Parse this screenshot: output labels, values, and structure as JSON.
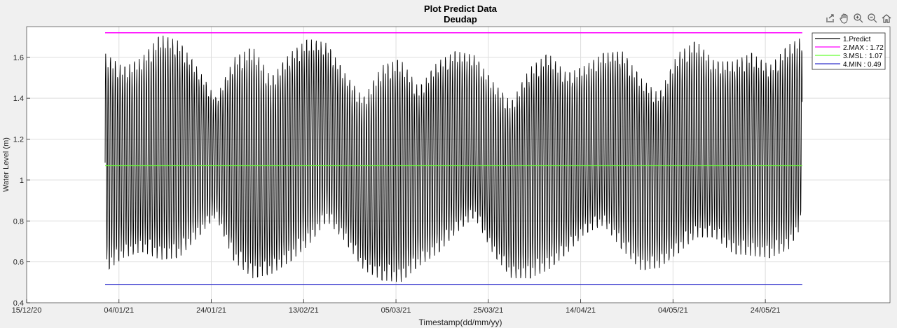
{
  "toolbar": {
    "icons": [
      "export-icon",
      "pan-hand-icon",
      "zoom-in-icon",
      "zoom-out-icon",
      "home-icon"
    ]
  },
  "chart_data": {
    "type": "line",
    "title": "Plot Predict Data",
    "subtitle": "Deudap",
    "xlabel": "Timestamp(dd/mm/yy)",
    "ylabel": "Water Level (m)",
    "x_axis": {
      "type": "date",
      "range": [
        "2020-12-15",
        "2021-06-20"
      ],
      "tick_dates": [
        "2020-12-15",
        "2021-01-04",
        "2021-01-24",
        "2021-02-13",
        "2021-03-05",
        "2021-03-25",
        "2021-04-14",
        "2021-05-04",
        "2021-05-24"
      ],
      "tick_labels": [
        "15/12/20",
        "04/01/21",
        "24/01/21",
        "13/02/21",
        "05/03/21",
        "25/03/21",
        "14/04/21",
        "04/05/21",
        "24/05/21"
      ]
    },
    "y_axis": {
      "range": [
        0.4,
        1.75
      ],
      "ticks": [
        0.4,
        0.6,
        0.8,
        1,
        1.2,
        1.4,
        1.6
      ],
      "tick_labels": [
        "0.4",
        "0.6",
        "0.8",
        "1",
        "1.2",
        "1.4",
        "1.6"
      ]
    },
    "grid": true,
    "legend_position": "top-right",
    "series": [
      {
        "name": "1.Predict",
        "color": "#000000",
        "x_start": "2021-01-01",
        "x_end": "2021-06-01",
        "envelope": {
          "dates": [
            "2021-01-01",
            "2021-01-05",
            "2021-01-09",
            "2021-01-13",
            "2021-01-17",
            "2021-01-21",
            "2021-01-25",
            "2021-01-29",
            "2021-02-02",
            "2021-02-06",
            "2021-02-10",
            "2021-02-14",
            "2021-02-18",
            "2021-02-22",
            "2021-02-26",
            "2021-03-02",
            "2021-03-06",
            "2021-03-10",
            "2021-03-14",
            "2021-03-18",
            "2021-03-22",
            "2021-03-26",
            "2021-03-30",
            "2021-04-03",
            "2021-04-07",
            "2021-04-11",
            "2021-04-15",
            "2021-04-19",
            "2021-04-23",
            "2021-04-27",
            "2021-05-01",
            "2021-05-05",
            "2021-05-09",
            "2021-05-13",
            "2021-05-17",
            "2021-05-21",
            "2021-05-25",
            "2021-05-29",
            "2021-06-01"
          ],
          "high": [
            1.62,
            1.55,
            1.6,
            1.71,
            1.68,
            1.55,
            1.4,
            1.6,
            1.65,
            1.5,
            1.62,
            1.69,
            1.67,
            1.52,
            1.4,
            1.56,
            1.59,
            1.45,
            1.58,
            1.63,
            1.61,
            1.48,
            1.38,
            1.55,
            1.62,
            1.52,
            1.56,
            1.62,
            1.63,
            1.5,
            1.42,
            1.62,
            1.68,
            1.58,
            1.58,
            1.62,
            1.56,
            1.66,
            1.7
          ],
          "low": [
            0.55,
            0.62,
            0.65,
            0.61,
            0.62,
            0.72,
            0.82,
            0.6,
            0.52,
            0.54,
            0.6,
            0.68,
            0.8,
            0.7,
            0.56,
            0.51,
            0.5,
            0.58,
            0.64,
            0.74,
            0.82,
            0.64,
            0.52,
            0.52,
            0.56,
            0.64,
            0.74,
            0.78,
            0.66,
            0.56,
            0.57,
            0.64,
            0.72,
            0.72,
            0.64,
            0.63,
            0.62,
            0.66,
            0.78
          ]
        },
        "cycles_per_day": 1.93
      },
      {
        "name": "2.MAX : 1.72",
        "color": "#ff00ff",
        "y": 1.72
      },
      {
        "name": "3.MSL : 1.07",
        "color": "#66ff33",
        "y": 1.07
      },
      {
        "name": "4.MIN : 0.49",
        "color": "#3333cc",
        "y": 0.49
      }
    ]
  }
}
